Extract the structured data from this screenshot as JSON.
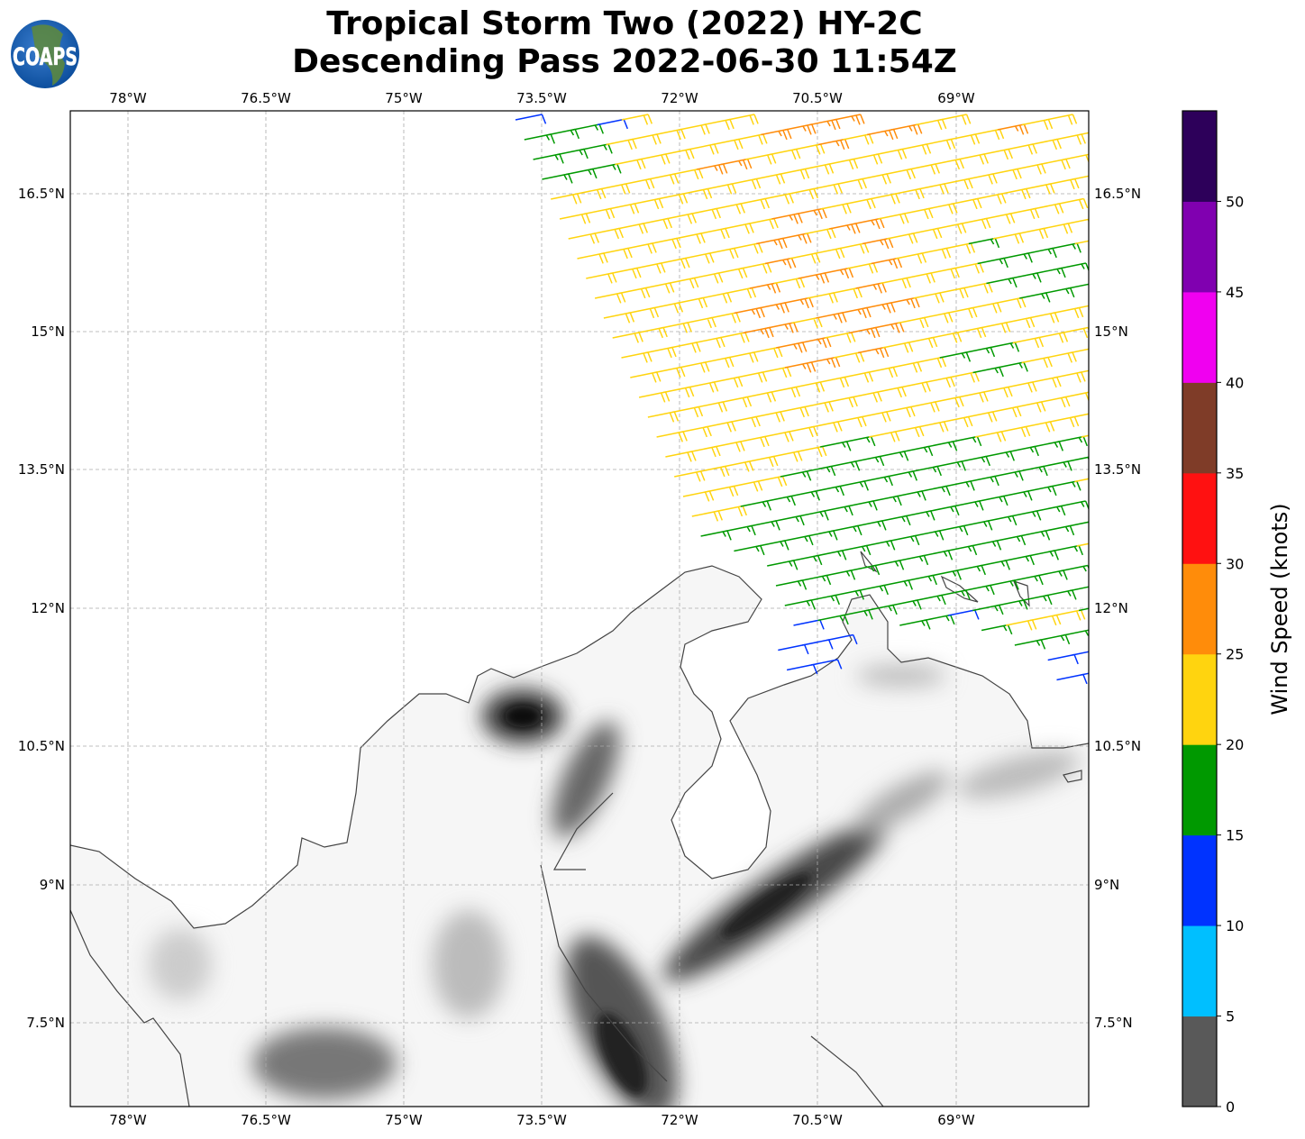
{
  "title": {
    "line1": "Tropical Storm Two (2022) HY-2C",
    "line2": "Descending Pass 2022-06-30 11:54Z"
  },
  "logo": {
    "text": "COAPS"
  },
  "map": {
    "lon_labels": [
      "78°W",
      "76.5°W",
      "75°W",
      "73.5°W",
      "72°W",
      "70.5°W",
      "69°W"
    ],
    "lat_labels": [
      "16.5°N",
      "15°N",
      "13.5°N",
      "12°N",
      "10.5°N",
      "9°N",
      "7.5°N"
    ]
  },
  "colorbar": {
    "label": "Wind Speed (knots)",
    "ticks": [
      "0",
      "5",
      "10",
      "15",
      "20",
      "25",
      "30",
      "35",
      "40",
      "45",
      "50"
    ],
    "range": [
      0,
      55
    ],
    "colors": [
      "#595959",
      "#00bfff",
      "#0033ff",
      "#009900",
      "#ffd40f",
      "#ff8c0a",
      "#ff1111",
      "#7f3c28",
      "#f000f0",
      "#8000b0",
      "#2d005a"
    ]
  }
}
